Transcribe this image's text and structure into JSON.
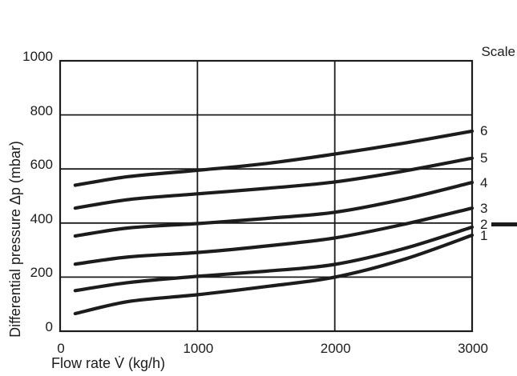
{
  "figure": {
    "colors": {
      "ink": "#1c1c1c",
      "background": "#ffffff"
    }
  },
  "chart_data": {
    "type": "line",
    "title": "",
    "xlabel": "Flow rate V̇ (kg/h)",
    "ylabel": "Differential pressure Δp (mbar)",
    "legend_title": "Scale",
    "legend_position": "top-right",
    "xlim": [
      0,
      3000
    ],
    "ylim": [
      0,
      1000
    ],
    "x_ticks": [
      0,
      1000,
      2000,
      3000
    ],
    "y_ticks": [
      0,
      200,
      400,
      600,
      800,
      1000
    ],
    "grid": true,
    "line_style": "thick-black",
    "x": [
      110,
      500,
      1000,
      1500,
      2000,
      2500,
      3000
    ],
    "series": [
      {
        "name": "6",
        "values": [
          540,
          572,
          595,
          620,
          655,
          695,
          740
        ]
      },
      {
        "name": "5",
        "values": [
          455,
          487,
          508,
          528,
          552,
          592,
          640
        ]
      },
      {
        "name": "4",
        "values": [
          352,
          382,
          398,
          417,
          440,
          488,
          550
        ]
      },
      {
        "name": "3",
        "values": [
          248,
          275,
          291,
          315,
          345,
          395,
          455
        ]
      },
      {
        "name": "2",
        "values": [
          150,
          180,
          203,
          222,
          247,
          305,
          385
        ]
      },
      {
        "name": "1",
        "values": [
          65,
          110,
          135,
          165,
          200,
          265,
          355
        ]
      }
    ],
    "annotations": [
      {
        "type": "dash-marker",
        "target_series": "2"
      }
    ]
  }
}
